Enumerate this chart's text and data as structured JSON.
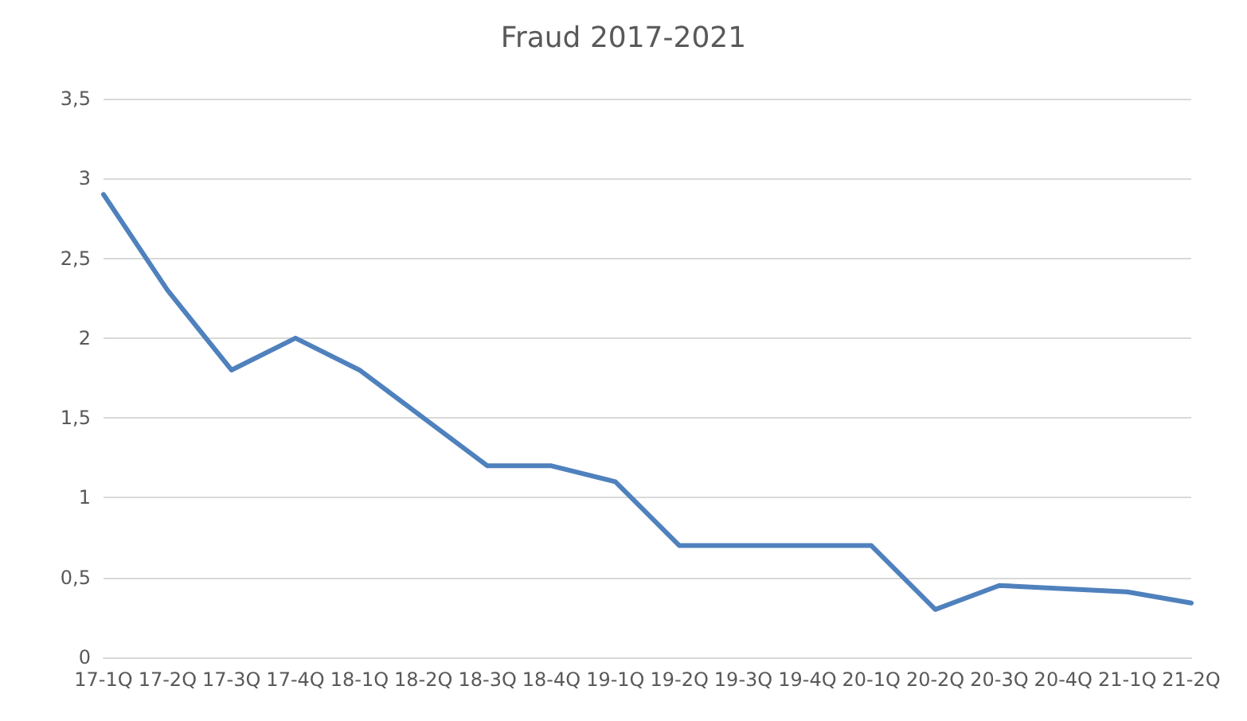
{
  "chart_data": {
    "type": "line",
    "title": "Fraud 2017-2021",
    "categories": [
      "17-1Q",
      "17-2Q",
      "17-3Q",
      "17-4Q",
      "18-1Q",
      "18-2Q",
      "18-3Q",
      "18-4Q",
      "19-1Q",
      "19-2Q",
      "19-3Q",
      "19-4Q",
      "20-1Q",
      "20-2Q",
      "20-3Q",
      "20-4Q",
      "21-1Q",
      "21-2Q"
    ],
    "series": [
      {
        "color": "#4f81bd",
        "values": [
          2.9,
          2.3,
          1.8,
          2.0,
          1.8,
          1.5,
          1.2,
          1.2,
          1.1,
          0.7,
          0.7,
          0.7,
          0.7,
          0.3,
          0.45,
          0.43,
          0.41,
          0.34
        ]
      }
    ],
    "ylim": [
      0,
      3.5
    ],
    "yticks": [
      0,
      {
        "value": 0.5,
        "label": "0,5"
      },
      1,
      {
        "value": 1.5,
        "label": "1,5"
      },
      2,
      {
        "value": 2.5,
        "label": "2,5"
      },
      3,
      {
        "value": 3.5,
        "label": "3,5"
      }
    ],
    "grid": "y",
    "marker": "none",
    "line_style": "solid"
  }
}
